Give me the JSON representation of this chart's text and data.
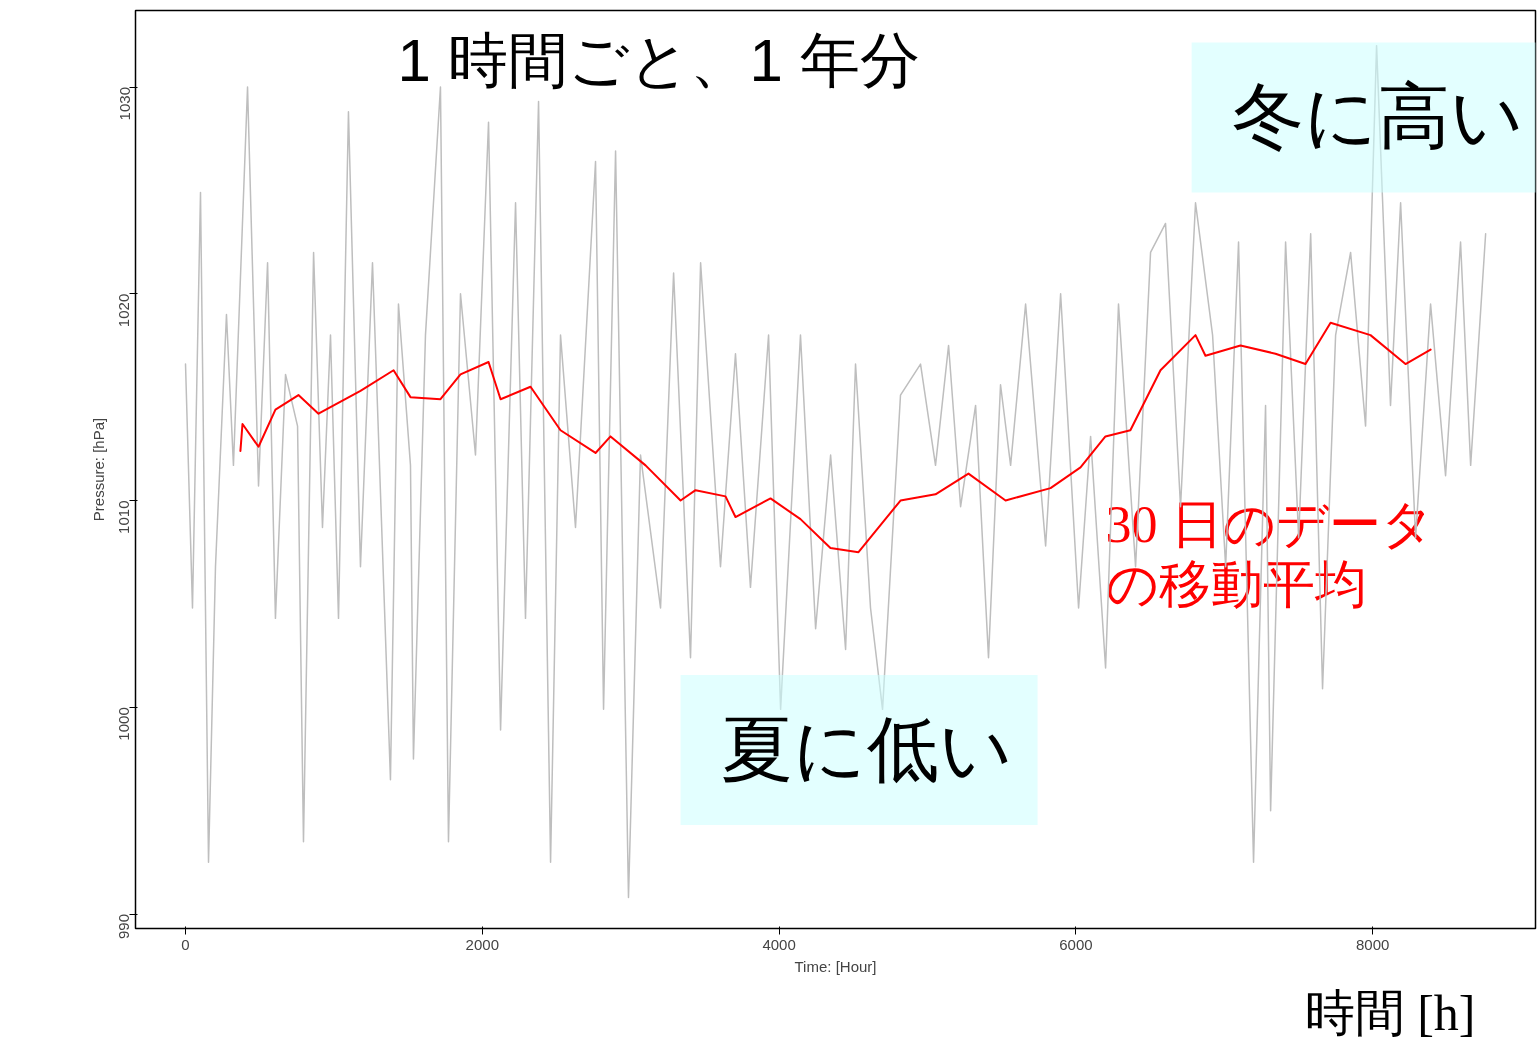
{
  "chart_data": {
    "type": "line",
    "title": "1 時間ごと、1 年分",
    "xlabel": "Time: [Hour]",
    "ylabel": "Pressure: [hPa]",
    "xlim": [
      -337,
      9097
    ],
    "ylim": [
      989.3,
      1033.7
    ],
    "xticks": [
      0,
      2000,
      4000,
      6000,
      8000
    ],
    "yticks": [
      990,
      1000,
      1010,
      1020,
      1030
    ],
    "grid": false,
    "legend": false,
    "annotations": [
      "冬に高い",
      "夏に低い",
      "時間 [h]"
    ],
    "series": [
      {
        "color": "#bebebe",
        "x": [
          0,
          47,
          101,
          155,
          202,
          276,
          323,
          418,
          492,
          553,
          606,
          674,
          755,
          795,
          863,
          923,
          977,
          1031,
          1098,
          1179,
          1260,
          1381,
          1435,
          1516,
          1536,
          1617,
          1718,
          1772,
          1853,
          1954,
          2042,
          2123,
          2224,
          2291,
          2379,
          2460,
          2527,
          2628,
          2763,
          2817,
          2898,
          2985,
          3066,
          3201,
          3289,
          3403,
          3471,
          3605,
          3706,
          3807,
          3929,
          4010,
          4144,
          4246,
          4347,
          4448,
          4515,
          4616,
          4697,
          4818,
          4953,
          5054,
          5142,
          5223,
          5324,
          5411,
          5492,
          5560,
          5661,
          5796,
          5897,
          6018,
          6099,
          6200,
          6287,
          6402,
          6503,
          6604,
          6705,
          6806,
          6921,
          7009,
          7096,
          7197,
          7278,
          7312,
          7413,
          7501,
          7582,
          7662,
          7750,
          7851,
          7952,
          8026,
          8120,
          8188,
          8289,
          8390,
          8491,
          8592,
          8660,
          8761
        ],
        "values": [
          1016.6,
          1004.8,
          1024.9,
          992.5,
          1006.8,
          1019.0,
          1011.7,
          1030.0,
          1010.7,
          1021.5,
          1004.3,
          1016.1,
          1013.6,
          993.5,
          1022.0,
          1008.7,
          1018.0,
          1004.3,
          1028.8,
          1006.8,
          1021.5,
          996.5,
          1019.5,
          1011.7,
          997.5,
          1018.0,
          1030.0,
          993.5,
          1020.0,
          1012.2,
          1028.3,
          998.9,
          1024.4,
          1004.3,
          1029.3,
          992.5,
          1018.0,
          1008.7,
          1026.4,
          999.9,
          1026.9,
          990.8,
          1012.2,
          1004.8,
          1021.0,
          1002.4,
          1021.5,
          1006.8,
          1017.1,
          1005.8,
          1018.0,
          999.9,
          1018.0,
          1003.8,
          1012.2,
          1002.8,
          1016.6,
          1004.8,
          999.9,
          1015.1,
          1016.6,
          1011.7,
          1017.5,
          1009.7,
          1014.6,
          1002.4,
          1015.6,
          1011.7,
          1019.5,
          1007.8,
          1020.0,
          1004.8,
          1013.1,
          1001.9,
          1019.5,
          1006.8,
          1022.0,
          1023.4,
          1009.7,
          1024.4,
          1018.0,
          1006.8,
          1022.5,
          992.5,
          1014.6,
          995.0,
          1022.5,
          1008.2,
          1022.9,
          1000.9,
          1018.0,
          1022.0,
          1013.6,
          1032.0,
          1014.6,
          1024.4,
          1008.2,
          1019.5,
          1011.2,
          1022.5,
          1011.7,
          1022.9
        ]
      },
      {
        "name": "30 日のデータの移動平均",
        "color": "#ff0000",
        "x": [
          370,
          384,
          492,
          606,
          761,
          896,
          1179,
          1402,
          1516,
          1718,
          1853,
          2042,
          2123,
          2325,
          2527,
          2763,
          2864,
          3100,
          3336,
          3437,
          3639,
          3706,
          3942,
          4144,
          4346,
          4535,
          4818,
          5054,
          5276,
          5526,
          5829,
          6031,
          6199,
          6367,
          6570,
          6806,
          6873,
          7109,
          7345,
          7547,
          7716,
          7985,
          8221,
          8390
        ],
        "values": [
          1012.4,
          1013.7,
          1012.6,
          1014.4,
          1015.1,
          1014.2,
          1015.3,
          1016.3,
          1015.0,
          1014.9,
          1016.1,
          1016.7,
          1014.9,
          1015.5,
          1013.4,
          1012.3,
          1013.1,
          1011.7,
          1010.0,
          1010.5,
          1010.2,
          1009.2,
          1010.1,
          1009.1,
          1007.7,
          1007.5,
          1010.0,
          1010.3,
          1011.3,
          1010.0,
          1010.6,
          1011.6,
          1013.1,
          1013.4,
          1016.3,
          1018.0,
          1017.0,
          1017.5,
          1017.1,
          1016.6,
          1018.6,
          1018.0,
          1016.6,
          1017.3
        ]
      }
    ]
  }
}
